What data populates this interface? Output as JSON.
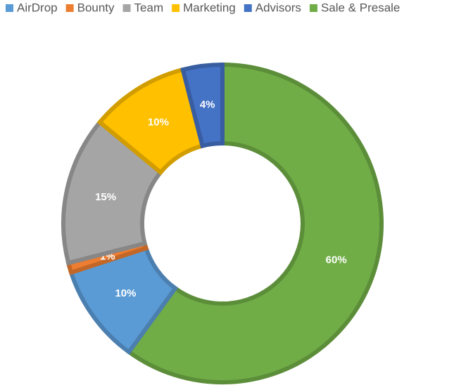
{
  "chart_data": {
    "type": "donut",
    "categories": [
      "AirDrop",
      "Bounty",
      "Team",
      "Marketing",
      "Advisors",
      "Sale & Presale"
    ],
    "values": [
      10,
      1,
      15,
      10,
      4,
      60
    ],
    "value_labels": [
      "10%",
      "1%",
      "15%",
      "10%",
      "4%",
      "60%"
    ],
    "colors": [
      "#5b9bd5",
      "#ed7d31",
      "#a5a5a5",
      "#ffc000",
      "#4472c4",
      "#70ad47"
    ],
    "legend": "top"
  }
}
